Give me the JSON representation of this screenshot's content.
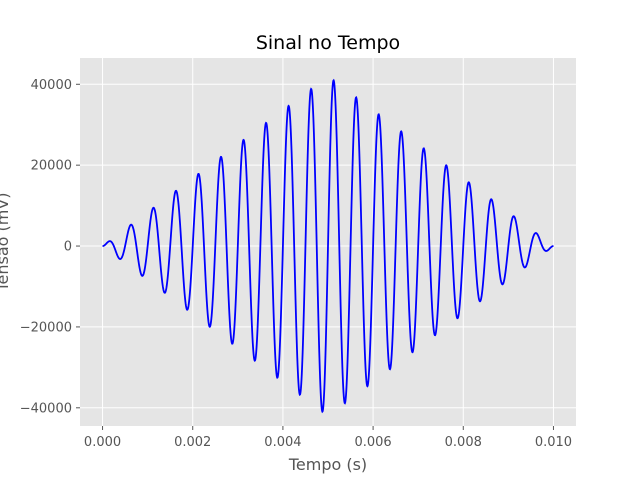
{
  "chart_data": {
    "type": "line",
    "title": "Sinal no Tempo",
    "xlabel": "Tempo (s)",
    "ylabel": "Tensão (mV)",
    "xlim": [
      -0.0005,
      0.0105
    ],
    "ylim": [
      -44500,
      46500
    ],
    "x_ticks": [
      0.0,
      0.002,
      0.004,
      0.006,
      0.008,
      0.01
    ],
    "x_tick_labels": [
      "0.000",
      "0.002",
      "0.004",
      "0.006",
      "0.008",
      "0.010"
    ],
    "y_ticks": [
      -40000,
      -20000,
      0,
      20000,
      40000
    ],
    "y_tick_labels": [
      "−40000",
      "−20000",
      "0",
      "20000",
      "40000"
    ],
    "grid": true,
    "background": "#e5e5e5",
    "grid_color": "#ffffff",
    "series": [
      {
        "color": "#0000ff",
        "signal": {
          "form": "amplitude-modulated sine, triangular envelope",
          "t_start": 0.0,
          "t_end": 0.01,
          "peak_amplitude_mV": 42000,
          "carrier_frequency_Hz": 2000,
          "envelope_peak_time_s": 0.005
        }
      }
    ]
  }
}
